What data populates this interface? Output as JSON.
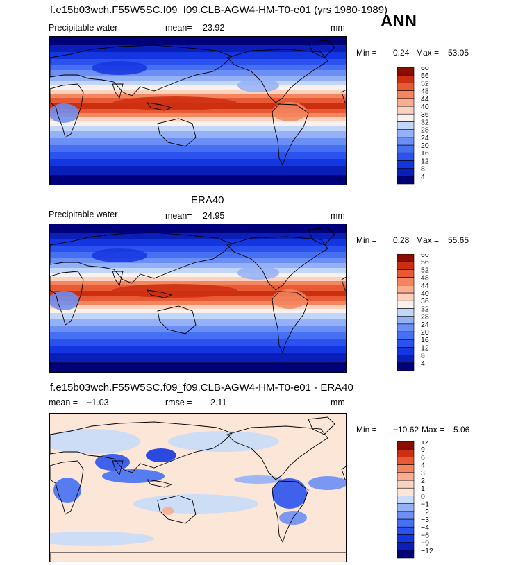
{
  "header": {
    "title": "f.e15b03wch.F55W5SC.f09_f09.CLB-AGW4-HM-T0-e01 (yrs 1980-1989)",
    "season": "ANN"
  },
  "panels": [
    {
      "title": "",
      "variable": "Precipitable water",
      "mean_label": "mean=",
      "mean_value": "23.92",
      "units": "mm",
      "min_label": "Min =",
      "min_value": "0.24",
      "max_label": "Max =",
      "max_value": "53.05"
    },
    {
      "title": "ERA40",
      "variable": "Precipitable water",
      "mean_label": "mean=",
      "mean_value": "24.95",
      "units": "mm",
      "min_label": "Min =",
      "min_value": "0.28",
      "max_label": "Max =",
      "max_value": "55.65"
    },
    {
      "title": "f.e15b03wch.F55W5SC.f09_f09.CLB-AGW4-HM-T0-e01 - ERA40",
      "variable": "",
      "mean_label": "mean =",
      "mean_value": "−1.03",
      "rmse_label": "rmse =",
      "rmse_value": "2.11",
      "units": "mm",
      "min_label": "Min =",
      "min_value": "−10.62",
      "max_label": "Max =",
      "max_value": "5.06"
    }
  ],
  "chart_data": [
    {
      "type": "heatmap",
      "name": "model",
      "colorbar_levels": [
        "4",
        "8",
        "12",
        "16",
        "20",
        "24",
        "28",
        "32",
        "36",
        "40",
        "44",
        "48",
        "52",
        "56",
        "60"
      ],
      "colorbar_colors": [
        "#00007a",
        "#0a1fb8",
        "#1436e0",
        "#2b52ee",
        "#4570f4",
        "#6b8ff5",
        "#94b0f7",
        "#c1d6f9",
        "#f8f1ee",
        "#fbd2bd",
        "#f8ae8f",
        "#f3865f",
        "#e85a33",
        "#cc2f10",
        "#8a0d00"
      ]
    },
    {
      "type": "heatmap",
      "name": "ERA40",
      "colorbar_levels": [
        "4",
        "8",
        "12",
        "16",
        "20",
        "24",
        "28",
        "32",
        "36",
        "40",
        "44",
        "48",
        "52",
        "56",
        "60"
      ],
      "colorbar_colors": [
        "#00007a",
        "#0a1fb8",
        "#1436e0",
        "#2b52ee",
        "#4570f4",
        "#6b8ff5",
        "#94b0f7",
        "#c1d6f9",
        "#f8f1ee",
        "#fbd2bd",
        "#f8ae8f",
        "#f3865f",
        "#e85a33",
        "#cc2f10",
        "#8a0d00"
      ]
    },
    {
      "type": "heatmap",
      "name": "difference",
      "colorbar_levels": [
        "−12",
        "−9",
        "−6",
        "−4",
        "−3",
        "−2",
        "−1",
        "0",
        "1",
        "2",
        "3",
        "4",
        "6",
        "9",
        "12"
      ],
      "colorbar_colors": [
        "#00007a",
        "#0a1fb8",
        "#1436e0",
        "#2b52ee",
        "#4570f4",
        "#6b8ff5",
        "#94b0f7",
        "#c9dcf9",
        "#fbe6d8",
        "#fbd2bd",
        "#f8ae8f",
        "#f3865f",
        "#e85a33",
        "#cc2f10",
        "#8a0d00"
      ]
    }
  ]
}
